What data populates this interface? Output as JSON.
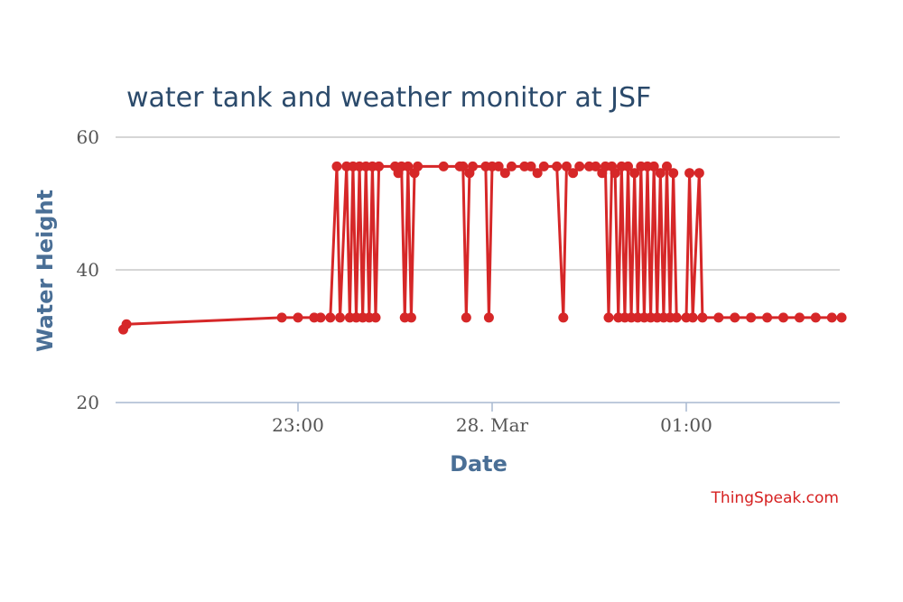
{
  "chart_data": {
    "type": "line",
    "title": "water tank and weather monitor at JSF",
    "xlabel": "Date",
    "ylabel": "Water Height",
    "y_ticks": [
      20,
      40,
      60
    ],
    "ylim": [
      20,
      60
    ],
    "x_ticks": [
      "23:00",
      "28. Mar",
      "01:00"
    ],
    "grid": "horizontal",
    "legend": "none",
    "credit": "ThingSpeak.com",
    "line_color": "#d62728",
    "series": [
      {
        "name": "",
        "values": [
          [
            "22:06",
            31.0
          ],
          [
            "22:07",
            31.8
          ],
          [
            "22:55",
            32.8
          ],
          [
            "23:00",
            32.8
          ],
          [
            "23:05",
            32.8
          ],
          [
            "23:07",
            32.8
          ],
          [
            "23:10",
            32.8
          ],
          [
            "23:12",
            55.6
          ],
          [
            "23:13",
            32.8
          ],
          [
            "23:15",
            55.6
          ],
          [
            "23:16",
            32.8
          ],
          [
            "23:17",
            55.6
          ],
          [
            "23:18",
            32.8
          ],
          [
            "23:19",
            55.6
          ],
          [
            "23:20",
            32.8
          ],
          [
            "23:21",
            55.6
          ],
          [
            "23:22",
            32.8
          ],
          [
            "23:23",
            55.6
          ],
          [
            "23:24",
            32.8
          ],
          [
            "23:25",
            55.6
          ],
          [
            "23:30",
            55.6
          ],
          [
            "23:31",
            54.6
          ],
          [
            "23:32",
            55.6
          ],
          [
            "23:33",
            32.8
          ],
          [
            "23:34",
            55.6
          ],
          [
            "23:35",
            32.8
          ],
          [
            "23:36",
            54.6
          ],
          [
            "23:37",
            55.6
          ],
          [
            "23:45",
            55.6
          ],
          [
            "23:50",
            55.6
          ],
          [
            "23:51",
            55.6
          ],
          [
            "23:52",
            32.8
          ],
          [
            "23:53",
            54.6
          ],
          [
            "23:54",
            55.6
          ],
          [
            "23:58",
            55.6
          ],
          [
            "23:59",
            32.8
          ],
          [
            "00:00",
            55.6
          ],
          [
            "00:02",
            55.6
          ],
          [
            "00:04",
            54.6
          ],
          [
            "00:06",
            55.6
          ],
          [
            "00:10",
            55.6
          ],
          [
            "00:12",
            55.6
          ],
          [
            "00:14",
            54.6
          ],
          [
            "00:16",
            55.6
          ],
          [
            "00:20",
            55.6
          ],
          [
            "00:22",
            32.8
          ],
          [
            "00:23",
            55.6
          ],
          [
            "00:25",
            54.6
          ],
          [
            "00:27",
            55.6
          ],
          [
            "00:30",
            55.6
          ],
          [
            "00:32",
            55.6
          ],
          [
            "00:34",
            54.6
          ],
          [
            "00:35",
            55.6
          ],
          [
            "00:36",
            32.8
          ],
          [
            "00:37",
            55.6
          ],
          [
            "00:38",
            54.6
          ],
          [
            "00:39",
            32.8
          ],
          [
            "00:40",
            55.6
          ],
          [
            "00:41",
            32.8
          ],
          [
            "00:42",
            55.6
          ],
          [
            "00:43",
            32.8
          ],
          [
            "00:44",
            54.6
          ],
          [
            "00:45",
            32.8
          ],
          [
            "00:46",
            55.6
          ],
          [
            "00:47",
            32.8
          ],
          [
            "00:48",
            55.6
          ],
          [
            "00:49",
            32.8
          ],
          [
            "00:50",
            55.6
          ],
          [
            "00:51",
            32.8
          ],
          [
            "00:52",
            54.6
          ],
          [
            "00:53",
            32.8
          ],
          [
            "00:54",
            55.6
          ],
          [
            "00:55",
            32.8
          ],
          [
            "00:56",
            54.6
          ],
          [
            "00:57",
            32.8
          ],
          [
            "01:00",
            32.8
          ],
          [
            "01:01",
            54.6
          ],
          [
            "01:02",
            32.8
          ],
          [
            "01:04",
            54.6
          ],
          [
            "01:05",
            32.8
          ],
          [
            "01:10",
            32.8
          ],
          [
            "01:15",
            32.8
          ],
          [
            "01:20",
            32.8
          ],
          [
            "01:25",
            32.8
          ],
          [
            "01:30",
            32.8
          ],
          [
            "01:35",
            32.8
          ],
          [
            "01:40",
            32.8
          ],
          [
            "01:45",
            32.8
          ],
          [
            "01:48",
            32.8
          ]
        ]
      }
    ]
  }
}
